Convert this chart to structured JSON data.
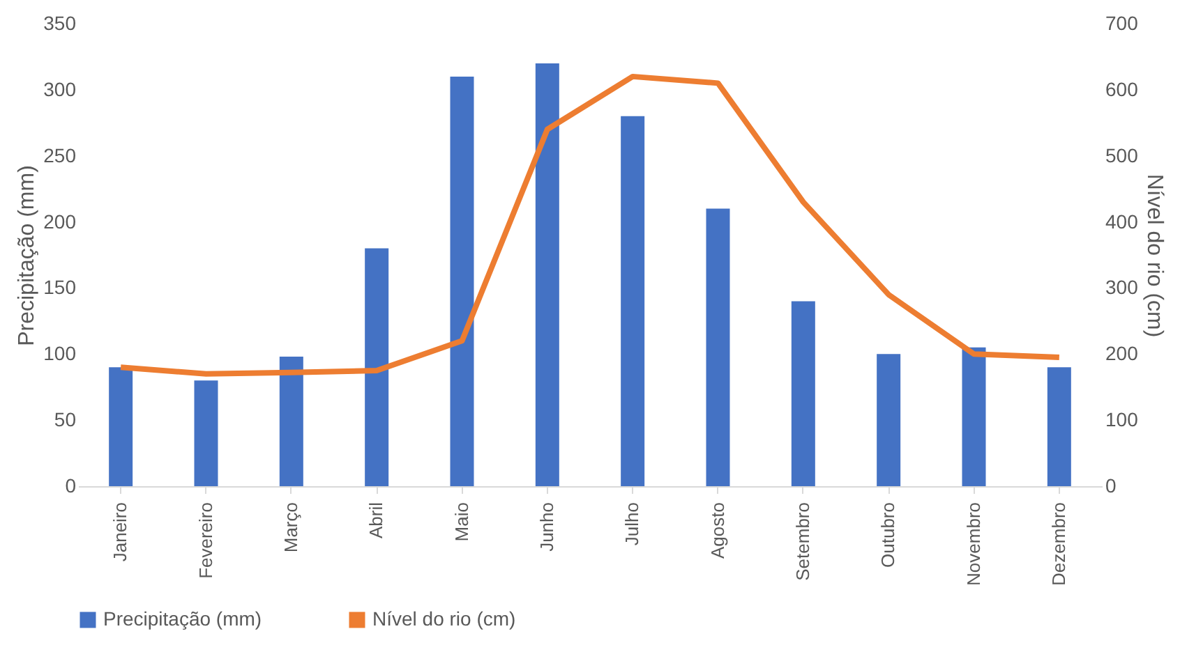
{
  "chart_data": {
    "type": "bar",
    "categories": [
      "Janeiro",
      "Fevereiro",
      "Março",
      "Abril",
      "Maio",
      "Junho",
      "Julho",
      "Agosto",
      "Setembro",
      "Outubro",
      "Novembro",
      "Dezembro"
    ],
    "series": [
      {
        "name": "Precipitação (mm)",
        "color": "#4472c4",
        "values": [
          90,
          80,
          98,
          180,
          310,
          320,
          280,
          210,
          140,
          100,
          105,
          90
        ]
      },
      {
        "name": "Nível do rio (cm)",
        "type": "line",
        "axis": "y2",
        "color": "#ed7d31",
        "values": [
          180,
          170,
          172,
          175,
          220,
          540,
          620,
          610,
          430,
          290,
          200,
          195
        ]
      }
    ],
    "ylabel": "Precipitação (mm)",
    "y2label": "Nível do rio (cm)",
    "ylim": [
      0,
      350
    ],
    "yticks": [
      0,
      50,
      100,
      150,
      200,
      250,
      300,
      350
    ],
    "y2lim": [
      0,
      700
    ],
    "y2ticks": [
      0,
      100,
      200,
      300,
      400,
      500,
      600,
      700
    ],
    "grid": false,
    "legend": "bottom",
    "marker": "none",
    "line_style": "solid"
  }
}
